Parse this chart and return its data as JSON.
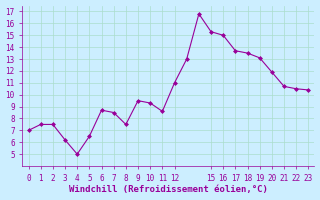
{
  "x": [
    0,
    1,
    2,
    3,
    4,
    5,
    6,
    7,
    8,
    9,
    10,
    11,
    12,
    13,
    14,
    15,
    16,
    17,
    18,
    19,
    20,
    21,
    22,
    23
  ],
  "y": [
    7.0,
    7.5,
    7.5,
    6.2,
    5.0,
    6.5,
    8.7,
    8.5,
    7.5,
    9.5,
    9.3,
    8.6,
    11.0,
    13.0,
    16.8,
    15.3,
    15.0,
    13.7,
    13.5,
    13.1,
    11.9,
    10.7,
    10.5,
    10.4
  ],
  "line_color": "#990099",
  "marker": "D",
  "marker_size": 2,
  "bg_color": "#cceeff",
  "grid_color": "#aaddcc",
  "xlabel": "Windchill (Refroidissement éolien,°C)",
  "ylim": [
    4,
    17.5
  ],
  "xlim": [
    -0.5,
    23.5
  ],
  "yticks": [
    5,
    6,
    7,
    8,
    9,
    10,
    11,
    12,
    13,
    14,
    15,
    16,
    17
  ],
  "xticks": [
    0,
    1,
    2,
    3,
    4,
    5,
    6,
    7,
    8,
    9,
    10,
    11,
    12,
    15,
    16,
    17,
    18,
    19,
    20,
    21,
    22,
    23
  ],
  "xtick_labels": [
    "0",
    "1",
    "2",
    "3",
    "4",
    "5",
    "6",
    "7",
    "8",
    "9",
    "10",
    "11",
    "12",
    "15",
    "16",
    "17",
    "18",
    "19",
    "20",
    "21",
    "22",
    "23"
  ],
  "label_fontsize": 6.5,
  "tick_fontsize": 5.5
}
